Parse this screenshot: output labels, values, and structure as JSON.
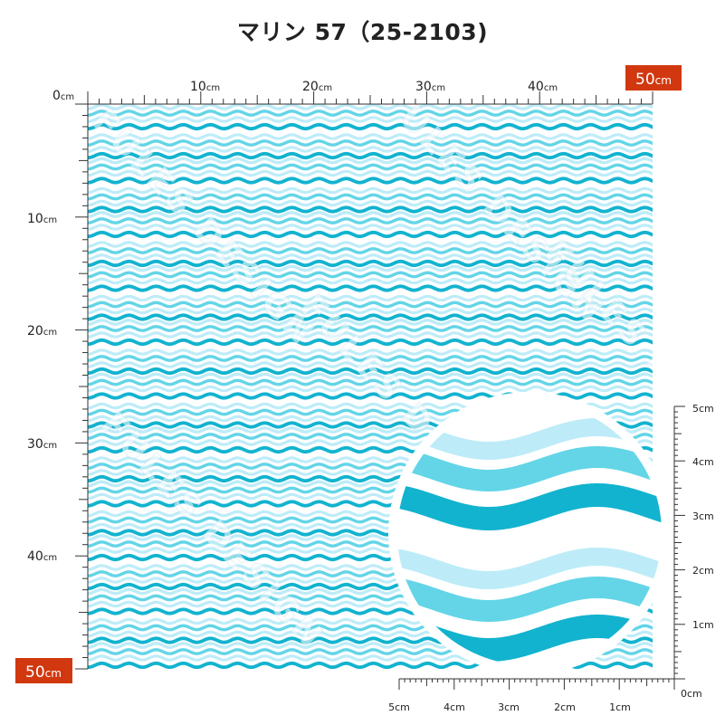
{
  "title": "マリン 57（25-2103)",
  "watermark": "FULES DESIGN",
  "unit": "cm",
  "top_ruler": {
    "zero": "0",
    "labels": [
      "10",
      "20",
      "30",
      "40"
    ],
    "end": "50"
  },
  "left_ruler": {
    "labels": [
      "10",
      "20",
      "30",
      "40"
    ],
    "end": "50"
  },
  "zoom_ruler_right": [
    "5",
    "4",
    "3",
    "2",
    "1",
    "0"
  ],
  "zoom_ruler_bottom": [
    "5",
    "4",
    "3",
    "2",
    "1"
  ],
  "colors": {
    "wave_dark": "#12b3cf",
    "wave_mid": "#63d5e7",
    "wave_light": "#bdecf8",
    "badge": "#d1380f",
    "ruler": "#333333"
  }
}
